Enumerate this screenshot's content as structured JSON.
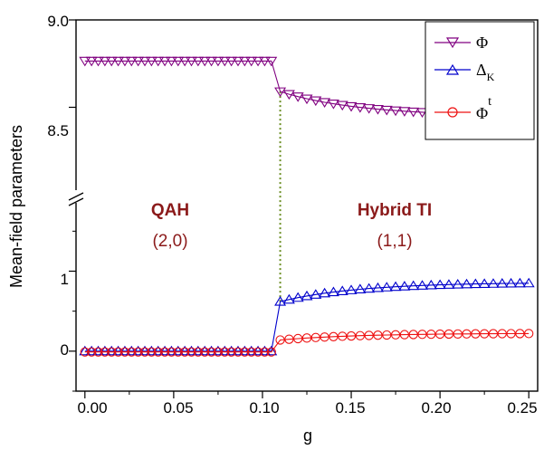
{
  "chart_data": {
    "type": "line",
    "xlabel": "g",
    "ylabel": "Mean-field parameters",
    "xlim": [
      -0.005,
      0.255
    ],
    "x_ticks": [
      "0.00",
      "0.05",
      "0.10",
      "0.15",
      "0.20",
      "0.25"
    ],
    "y_ticks_upper": [
      "9.0",
      "8.5"
    ],
    "y_ticks_lower": [
      "1",
      "0"
    ],
    "axis_break": "broken y-axis between 8.5 panel and 0-1 panel",
    "upper_ylim": [
      8.0,
      9.0
    ],
    "lower_ylim": [
      -0.5,
      1.9
    ],
    "transition_x": 0.11,
    "regions": [
      {
        "name": "QAH",
        "index": "(2,0)",
        "color": "#8b1a1a"
      },
      {
        "name": "Hybrid TI",
        "index": "(1,1)",
        "color": "#8b1a1a"
      }
    ],
    "legend_position": "top-right",
    "series": [
      {
        "name": "Φ",
        "name_sup": "",
        "name_sub": "",
        "color": "#800080",
        "marker": "triangle-down",
        "panel": "upper",
        "segments": [
          {
            "x_start": 0.0,
            "x_end": 0.105,
            "y_start": 8.765,
            "y_end": 8.765
          },
          {
            "x_start": 0.11,
            "x_end": 0.25,
            "y_start": 8.59,
            "y_end": 8.455
          }
        ]
      },
      {
        "name": "Δ",
        "name_sup": "",
        "name_sub": "K",
        "color": "#0000cc",
        "marker": "triangle-up",
        "panel": "lower",
        "segments": [
          {
            "x_start": 0.0,
            "x_end": 0.105,
            "y_start": 0.0,
            "y_end": 0.0
          },
          {
            "x_start": 0.11,
            "x_end": 0.25,
            "y_start": 0.62,
            "y_end": 0.85
          }
        ]
      },
      {
        "name": "Φ",
        "name_sup": "t",
        "name_sub": "",
        "color": "#ee1111",
        "marker": "circle",
        "panel": "lower",
        "segments": [
          {
            "x_start": 0.0,
            "x_end": 0.105,
            "y_start": -0.01,
            "y_end": -0.01
          },
          {
            "x_start": 0.11,
            "x_end": 0.25,
            "y_start": 0.14,
            "y_end": 0.22
          }
        ]
      }
    ]
  }
}
